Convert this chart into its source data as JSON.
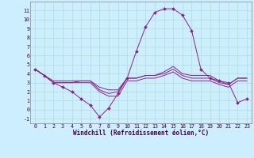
{
  "xlabel": "Windchill (Refroidissement éolien,°C)",
  "ylabel": "",
  "background_color": "#cceeff",
  "grid_color": "#b0ddd0",
  "line_color": "#882288",
  "x": [
    0,
    1,
    2,
    3,
    4,
    5,
    6,
    7,
    8,
    9,
    10,
    11,
    12,
    13,
    14,
    15,
    16,
    17,
    18,
    19,
    20,
    21,
    22,
    23
  ],
  "line1": [
    4.5,
    3.8,
    3.0,
    3.0,
    3.0,
    3.2,
    3.2,
    2.2,
    1.8,
    2.0,
    3.5,
    3.5,
    3.8,
    3.8,
    4.0,
    4.5,
    3.8,
    3.5,
    3.5,
    3.5,
    3.0,
    2.8,
    3.5,
    3.5
  ],
  "line2": [
    4.5,
    3.8,
    3.0,
    2.5,
    2.0,
    1.2,
    0.5,
    -0.8,
    0.2,
    1.8,
    3.5,
    6.5,
    9.2,
    10.8,
    11.2,
    11.2,
    10.5,
    8.8,
    4.5,
    3.5,
    3.2,
    3.0,
    0.8,
    1.2
  ],
  "line3": [
    4.5,
    3.8,
    3.2,
    3.2,
    3.2,
    3.2,
    3.2,
    2.5,
    2.2,
    2.2,
    3.5,
    3.5,
    3.8,
    3.8,
    4.2,
    4.8,
    4.0,
    3.8,
    3.8,
    3.8,
    3.2,
    2.8,
    3.5,
    3.5
  ],
  "line4": [
    4.5,
    3.8,
    3.0,
    3.0,
    3.0,
    3.0,
    3.0,
    2.0,
    1.5,
    1.5,
    3.2,
    3.2,
    3.5,
    3.5,
    3.8,
    4.2,
    3.5,
    3.2,
    3.2,
    3.2,
    2.8,
    2.5,
    3.2,
    3.2
  ],
  "ylim": [
    -1.5,
    12.0
  ],
  "xlim": [
    -0.5,
    23.5
  ],
  "yticks": [
    -1,
    0,
    1,
    2,
    3,
    4,
    5,
    6,
    7,
    8,
    9,
    10,
    11
  ],
  "xticks": [
    0,
    1,
    2,
    3,
    4,
    5,
    6,
    7,
    8,
    9,
    10,
    11,
    12,
    13,
    14,
    15,
    16,
    17,
    18,
    19,
    20,
    21,
    22,
    23
  ],
  "xlabel_fontsize": 5.5,
  "tick_fontsize": 4.8,
  "marker_size": 2.0,
  "linewidth": 0.7
}
